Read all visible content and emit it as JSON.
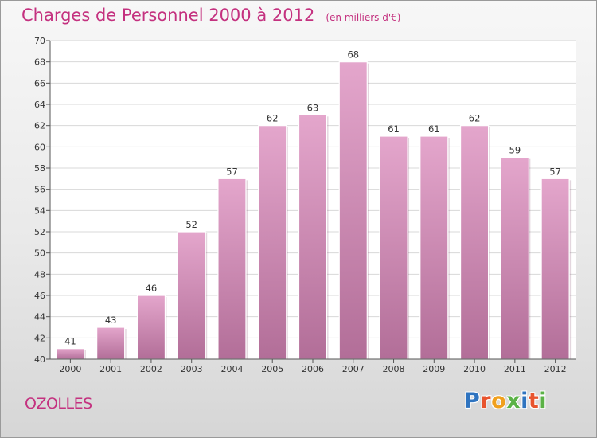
{
  "header": {
    "title": "Charges de Personnel 2000 à 2012",
    "unit": "(en milliers d'€)"
  },
  "footer": {
    "commune": "OZOLLES",
    "logo_letters": [
      "P",
      "r",
      "o",
      "x",
      "i",
      "t",
      "i"
    ]
  },
  "colors": {
    "accent": "#c4317f",
    "bar_top": "#e4a6cc",
    "bar_bottom": "#b26e98",
    "logo": [
      "#2f74c0",
      "#e8542e",
      "#f0a01e",
      "#5bb246",
      "#2f74c0",
      "#e8542e",
      "#5bb246"
    ]
  },
  "chart_data": {
    "type": "bar",
    "title": "Charges de Personnel 2000 à 2012",
    "unit": "(en milliers d'€)",
    "categories": [
      "2000",
      "2001",
      "2002",
      "2003",
      "2004",
      "2005",
      "2006",
      "2007",
      "2008",
      "2009",
      "2010",
      "2011",
      "2012"
    ],
    "values": [
      41,
      43,
      46,
      52,
      57,
      62,
      63,
      68,
      61,
      61,
      62,
      59,
      57
    ],
    "ylim": [
      40,
      70
    ],
    "yticks": [
      40,
      42,
      44,
      46,
      48,
      50,
      52,
      54,
      56,
      58,
      60,
      62,
      64,
      66,
      68,
      70
    ],
    "grid": true,
    "legend": "none"
  }
}
